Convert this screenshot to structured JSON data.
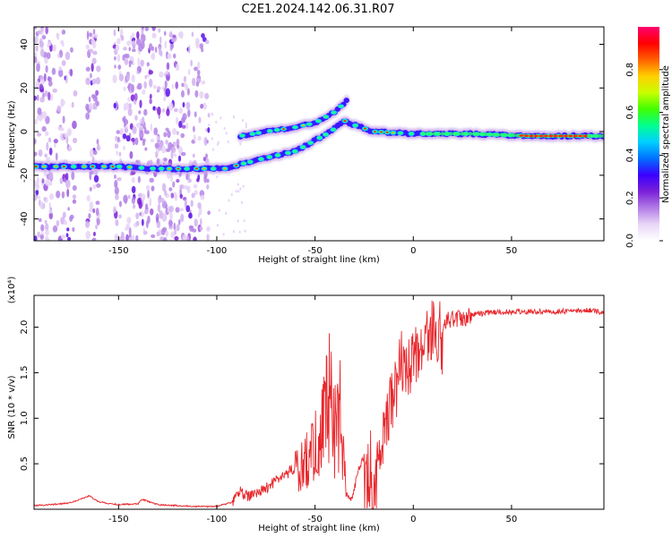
{
  "title": "C2E1.2024.142.06.31.R07",
  "chart_data": [
    {
      "type": "heatmap",
      "xlabel": "Height of straight line (km)",
      "ylabel": "Frequency (Hz)",
      "xlim": [
        -193,
        97
      ],
      "ylim": [
        -50,
        48
      ],
      "xticks": [
        -150,
        -100,
        -50,
        0,
        50
      ],
      "yticks": [
        -40,
        -20,
        0,
        20,
        40
      ],
      "grid": false,
      "colorbar": {
        "label": "Normalized spectral amplitude",
        "range": [
          0,
          1
        ],
        "ticks": [
          "0.0",
          "0.2",
          "0.4",
          "0.6",
          "0.8"
        ],
        "colors": [
          "#ffffff",
          "#e8d6f7",
          "#b27be6",
          "#7a20d8",
          "#3a00ff",
          "#0070ff",
          "#00d0ff",
          "#00ff90",
          "#40ff00",
          "#c8ff00",
          "#ffd000",
          "#ff6000",
          "#ff0000",
          "#ff0070"
        ]
      },
      "ridge": [
        {
          "x": -193,
          "y": -16
        },
        {
          "x": -170,
          "y": -16
        },
        {
          "x": -150,
          "y": -16
        },
        {
          "x": -130,
          "y": -17
        },
        {
          "x": -110,
          "y": -17
        },
        {
          "x": -96,
          "y": -17
        },
        {
          "x": -88,
          "y": -15
        },
        {
          "x": -75,
          "y": -12
        },
        {
          "x": -60,
          "y": -9
        },
        {
          "x": -50,
          "y": -4
        },
        {
          "x": -42,
          "y": 0
        },
        {
          "x": -35,
          "y": 5
        },
        {
          "x": -30,
          "y": 3
        },
        {
          "x": -20,
          "y": 0
        },
        {
          "x": 0,
          "y": -1
        },
        {
          "x": 30,
          "y": -1
        },
        {
          "x": 60,
          "y": -2
        },
        {
          "x": 97,
          "y": -2
        }
      ],
      "upper_branch": [
        {
          "x": -88,
          "y": -2
        },
        {
          "x": -75,
          "y": 0
        },
        {
          "x": -60,
          "y": 2
        },
        {
          "x": -50,
          "y": 4
        },
        {
          "x": -40,
          "y": 9
        },
        {
          "x": -34,
          "y": 14
        }
      ]
    },
    {
      "type": "line",
      "xlabel": "Height of straight line (km)",
      "ylabel": "SNR (10 * v/v)",
      "yscale_label": "(x10⁴)",
      "xlim": [
        -193,
        97
      ],
      "ylim": [
        0,
        2.35
      ],
      "xticks": [
        -150,
        -100,
        -50,
        0,
        50
      ],
      "yticks": [
        0.5,
        1.0,
        1.5,
        2.0
      ],
      "series": [
        {
          "color": "#e8262b",
          "x": [
            -193,
            -185,
            -175,
            -168,
            -165,
            -160,
            -150,
            -140,
            -138,
            -130,
            -120,
            -110,
            -100,
            -92,
            -88,
            -86,
            -82,
            -76,
            -70,
            -64,
            -58,
            -54,
            -50,
            -46,
            -43,
            -40,
            -37,
            -34,
            -31,
            -28,
            -25,
            -22,
            -20,
            -17,
            -14,
            -10,
            -6,
            -3,
            0,
            5,
            10,
            15,
            20,
            25,
            30,
            40,
            50,
            60,
            70,
            80,
            90,
            97
          ],
          "y": [
            0.04,
            0.05,
            0.07,
            0.12,
            0.15,
            0.08,
            0.05,
            0.06,
            0.11,
            0.05,
            0.04,
            0.03,
            0.03,
            0.08,
            0.22,
            0.15,
            0.16,
            0.22,
            0.32,
            0.4,
            0.5,
            0.62,
            0.78,
            1.05,
            1.6,
            1.0,
            1.2,
            0.18,
            0.1,
            0.45,
            0.55,
            0.72,
            0.45,
            1.02,
            1.35,
            1.62,
            1.75,
            1.95,
            1.98,
            2.02,
            2.3,
            2.05,
            2.12,
            2.1,
            2.14,
            2.16,
            2.17,
            2.17,
            2.17,
            2.18,
            2.19,
            2.15
          ]
        }
      ]
    }
  ]
}
